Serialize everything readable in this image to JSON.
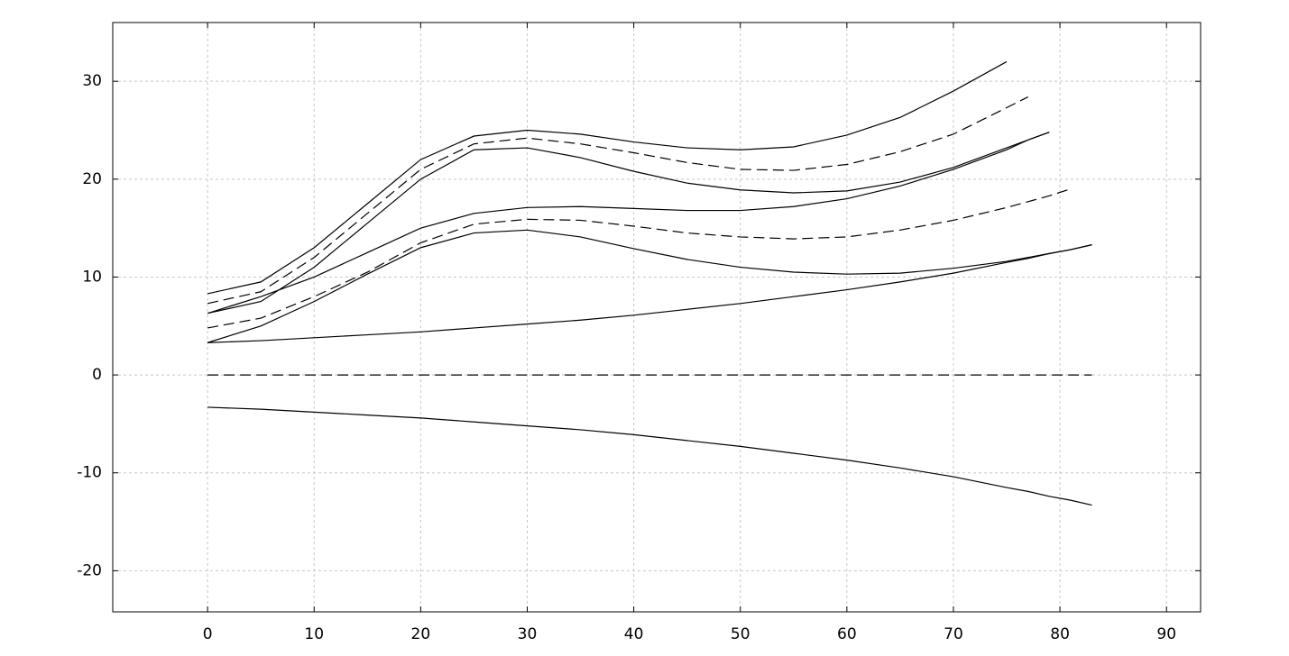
{
  "chart_data": {
    "type": "line",
    "x": [
      0,
      5,
      10,
      15,
      20,
      25,
      30,
      35,
      40,
      45,
      50,
      55,
      60,
      65,
      70,
      75,
      77,
      79,
      81,
      83
    ],
    "series": [
      {
        "color": "#000000",
        "style": "solid",
        "values": [
          8.3,
          9.5,
          13,
          17.5,
          22,
          24.4,
          25,
          24.6,
          23.8,
          23.2,
          23,
          23.3,
          24.5,
          26.3,
          29,
          32,
          null,
          null,
          null,
          null
        ]
      },
      {
        "color": "#000000",
        "style": "dashed",
        "values": [
          7.3,
          8.5,
          12,
          16.5,
          21,
          23.6,
          24.2,
          23.6,
          22.7,
          21.7,
          21,
          20.9,
          21.5,
          22.8,
          24.6,
          27.3,
          28.4,
          null,
          null,
          null
        ]
      },
      {
        "color": "#000000",
        "style": "solid",
        "values": [
          6.3,
          7.5,
          11,
          15.5,
          20,
          23,
          23.2,
          22.2,
          20.8,
          19.6,
          18.9,
          18.6,
          18.8,
          19.7,
          21.2,
          23.2,
          24,
          24.8,
          null,
          null
        ]
      },
      {
        "color": "#000000",
        "style": "solid",
        "values": [
          6.3,
          8,
          10,
          12.5,
          15,
          16.5,
          17.1,
          17.2,
          17,
          16.8,
          16.8,
          17.2,
          18,
          19.3,
          21,
          23,
          24,
          24.8,
          null,
          null
        ]
      },
      {
        "color": "#000000",
        "style": "dashed",
        "values": [
          4.8,
          5.8,
          8,
          10.5,
          13.5,
          15.4,
          15.9,
          15.8,
          15.2,
          14.5,
          14.1,
          13.9,
          14.1,
          14.8,
          15.8,
          17.1,
          17.7,
          18.3,
          19,
          null
        ]
      },
      {
        "color": "#000000",
        "style": "solid",
        "values": [
          3.3,
          5,
          7.5,
          10.3,
          13,
          14.5,
          14.8,
          14.1,
          12.9,
          11.8,
          11,
          10.5,
          10.3,
          10.4,
          10.9,
          11.6,
          12,
          12.4,
          12.8,
          13.3
        ]
      },
      {
        "color": "#000000",
        "style": "solid",
        "values": [
          3.3,
          3.5,
          3.8,
          4.1,
          4.4,
          4.8,
          5.2,
          5.6,
          6.1,
          6.7,
          7.3,
          8,
          8.7,
          9.5,
          10.4,
          11.5,
          11.9,
          12.4,
          12.8,
          13.3
        ]
      },
      {
        "color": "#000000",
        "style": "dashed",
        "values": [
          0,
          0,
          0,
          0,
          0,
          0,
          0,
          0,
          0,
          0,
          0,
          0,
          0,
          0,
          0,
          0,
          0,
          0,
          0,
          0
        ]
      },
      {
        "color": "#000000",
        "style": "solid",
        "values": [
          -3.3,
          -3.5,
          -3.8,
          -4.1,
          -4.4,
          -4.8,
          -5.2,
          -5.6,
          -6.1,
          -6.7,
          -7.3,
          -8,
          -8.7,
          -9.5,
          -10.4,
          -11.5,
          -11.9,
          -12.4,
          -12.8,
          -13.3
        ]
      }
    ],
    "xlim": [
      -8.9,
      93.2
    ],
    "ylim": [
      -24.2,
      36
    ],
    "xticks": [
      0,
      10,
      20,
      30,
      40,
      50,
      60,
      70,
      80,
      90
    ],
    "yticks": [
      -20,
      -10,
      0,
      10,
      20,
      30
    ],
    "grid": true
  }
}
